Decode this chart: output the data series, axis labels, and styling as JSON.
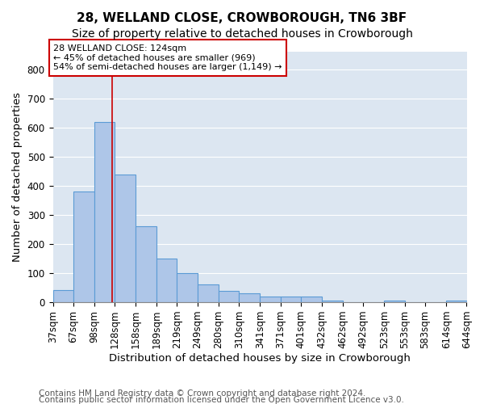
{
  "title_line1": "28, WELLAND CLOSE, CROWBOROUGH, TN6 3BF",
  "title_line2": "Size of property relative to detached houses in Crowborough",
  "xlabel": "Distribution of detached houses by size in Crowborough",
  "ylabel": "Number of detached properties",
  "footer_line1": "Contains HM Land Registry data © Crown copyright and database right 2024.",
  "footer_line2": "Contains public sector information licensed under the Open Government Licence v3.0.",
  "bar_edges": [
    37,
    67,
    98,
    128,
    158,
    189,
    219,
    249,
    280,
    310,
    341,
    371,
    401,
    432,
    462,
    492,
    523,
    553,
    583,
    614,
    644
  ],
  "bar_heights": [
    43,
    380,
    620,
    440,
    260,
    150,
    100,
    60,
    40,
    30,
    20,
    20,
    20,
    5,
    0,
    0,
    5,
    0,
    0,
    5
  ],
  "bar_color": "#aec6e8",
  "bar_edge_color": "#5b9bd5",
  "property_line_x": 124,
  "property_line_color": "#cc0000",
  "annotation_text": "28 WELLAND CLOSE: 124sqm\n← 45% of detached houses are smaller (969)\n54% of semi-detached houses are larger (1,149) →",
  "annotation_box_color": "#cc0000",
  "annotation_text_color": "#000000",
  "ylim": [
    0,
    860
  ],
  "yticks": [
    0,
    100,
    200,
    300,
    400,
    500,
    600,
    700,
    800
  ],
  "background_color": "#dce6f1",
  "grid_color": "#ffffff",
  "title1_fontsize": 11,
  "title2_fontsize": 10,
  "xlabel_fontsize": 9.5,
  "ylabel_fontsize": 9.5,
  "tick_fontsize": 8.5,
  "footer_fontsize": 7.5
}
